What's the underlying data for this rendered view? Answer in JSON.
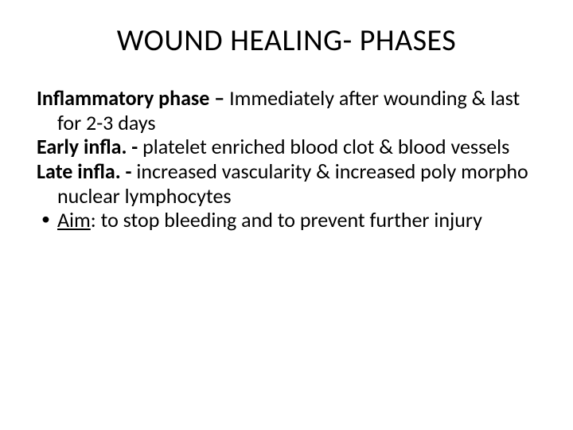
{
  "slide": {
    "title": "WOUND HEALING- PHASES",
    "title_fontsize": 38,
    "body_fontsize": 26,
    "background_color": "#ffffff",
    "text_color": "#000000",
    "paragraphs": [
      {
        "bold_lead": "Inflammatory phase – ",
        "rest": "Immediately after wounding & last for   2-3 days"
      },
      {
        "bold_lead": "Early infla. -",
        "rest": " platelet enriched blood clot & blood vessels"
      },
      {
        "bold_lead": "Late infla. -",
        "rest": "  increased vascularity & increased poly morpho nuclear lymphocytes"
      }
    ],
    "bullet": {
      "marker": "•",
      "lead_space": " ",
      "aim_label": "Aim",
      "aim_text": ": to stop bleeding and to prevent further injury"
    }
  }
}
